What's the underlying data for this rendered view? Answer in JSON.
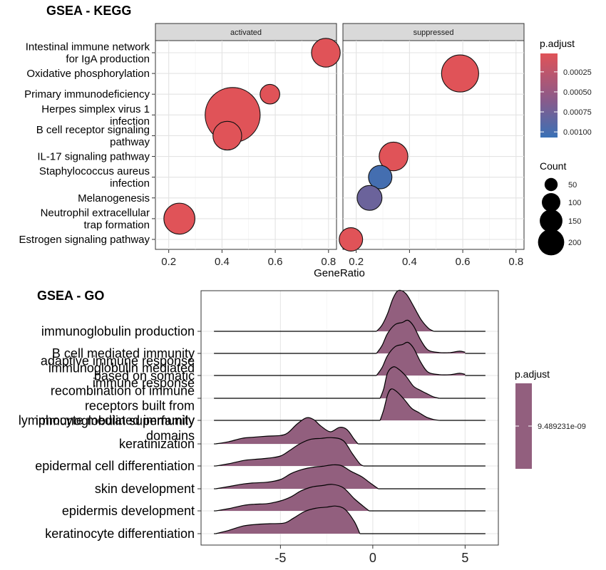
{
  "kegg": {
    "title": "GSEA - KEGG",
    "panels": [
      "activated",
      "suppressed"
    ],
    "xlabel": "GeneRatio",
    "size_legend_title": "Count",
    "color_legend_title": "p.adjust",
    "color_low": "#e05358",
    "color_high": "#3a71b6"
  },
  "go": {
    "title": "GSEA - GO",
    "color_legend_title": "p.adjust",
    "fill_color": "#925f7e"
  },
  "chart_data": [
    {
      "type": "scatter",
      "subtype": "faceted-dotplot",
      "title": "GSEA - KEGG",
      "xlabel": "GeneRatio",
      "ylabel": "",
      "xlim": [
        0.15,
        0.83
      ],
      "x_ticks": [
        "0.2",
        "0.4",
        "0.6",
        "0.8"
      ],
      "x_tick_values": [
        0.2,
        0.4,
        0.6,
        0.8
      ],
      "grid": true,
      "facets": [
        "activated",
        "suppressed"
      ],
      "categories": [
        "Intestinal immune network for IgA production",
        "Oxidative phosphorylation",
        "Primary immunodeficiency",
        "Herpes simplex virus 1 infection",
        "B cell receptor signaling pathway",
        "IL-17 signaling pathway",
        "Staphylococcus aureus infection",
        "Melanogenesis",
        "Neutrophil extracellular trap formation",
        "Estrogen signaling pathway"
      ],
      "category_label_lines": [
        [
          "Intestinal immune network",
          "for IgA production"
        ],
        [
          "Oxidative phosphorylation"
        ],
        [
          "Primary immunodeficiency"
        ],
        [
          "Herpes simplex virus 1",
          "infection"
        ],
        [
          "B cell receptor signaling",
          "pathway"
        ],
        [
          "IL-17 signaling pathway"
        ],
        [
          "Staphylococcus aureus",
          "infection"
        ],
        [
          "Melanogenesis"
        ],
        [
          "Neutrophil extracellular",
          "trap formation"
        ],
        [
          "Estrogen signaling pathway"
        ]
      ],
      "points": [
        {
          "category": "Intestinal immune network for IgA production",
          "facet": "activated",
          "x": 0.79,
          "count": 60,
          "p_adjust": 2e-05
        },
        {
          "category": "Oxidative phosphorylation",
          "facet": "suppressed",
          "x": 0.59,
          "count": 100,
          "p_adjust": 2e-05
        },
        {
          "category": "Primary immunodeficiency",
          "facet": "activated",
          "x": 0.58,
          "count": 28,
          "p_adjust": 2e-05
        },
        {
          "category": "Herpes simplex virus 1 infection",
          "facet": "activated",
          "x": 0.44,
          "count": 220,
          "p_adjust": 2e-05
        },
        {
          "category": "B cell receptor signaling pathway",
          "facet": "activated",
          "x": 0.42,
          "count": 60,
          "p_adjust": 2e-05
        },
        {
          "category": "IL-17 signaling pathway",
          "facet": "suppressed",
          "x": 0.34,
          "count": 60,
          "p_adjust": 2e-05
        },
        {
          "category": "Staphylococcus aureus infection",
          "facet": "suppressed",
          "x": 0.29,
          "count": 40,
          "p_adjust": 0.00101
        },
        {
          "category": "Melanogenesis",
          "facet": "suppressed",
          "x": 0.25,
          "count": 45,
          "p_adjust": 0.00078
        },
        {
          "category": "Neutrophil extracellular trap formation",
          "facet": "activated",
          "x": 0.24,
          "count": 70,
          "p_adjust": 2e-05
        },
        {
          "category": "Estrogen signaling pathway",
          "facet": "suppressed",
          "x": 0.18,
          "count": 40,
          "p_adjust": 2e-05
        }
      ],
      "color_legend": {
        "title": "p.adjust",
        "range": [
          2e-05,
          0.00107
        ],
        "breaks": [
          0.00025,
          0.0005,
          0.00075,
          0.001
        ],
        "labels": [
          "0.00025",
          "0.00050",
          "0.00075",
          "0.00100"
        ]
      },
      "size_legend": {
        "title": "Count",
        "breaks": [
          50,
          100,
          150,
          200
        ],
        "labels": [
          "50",
          "100",
          "150",
          "200"
        ]
      }
    },
    {
      "type": "area",
      "subtype": "ridgeline",
      "title": "GSEA - GO",
      "xlabel": "",
      "ylabel": "",
      "xlim": [
        -9.3,
        6.8
      ],
      "x_ticks": [
        "-5",
        "0",
        "5"
      ],
      "x_tick_values": [
        -5,
        0,
        5
      ],
      "grid": true,
      "color_legend": {
        "title": "p.adjust",
        "labels": [
          "9.489231e-09"
        ]
      },
      "ridges": [
        {
          "label": "immunoglobulin production",
          "label_lines": [
            "immunoglobulin production"
          ],
          "x_range": [
            -8.6,
            6.1
          ],
          "fill_range": [
            0.2,
            3.3
          ],
          "density_points": [
            [
              0.2,
              0
            ],
            [
              0.5,
              0.28
            ],
            [
              0.8,
              0.8
            ],
            [
              1.1,
              1.5
            ],
            [
              1.4,
              1.85
            ],
            [
              1.8,
              1.7
            ],
            [
              2.2,
              1.15
            ],
            [
              2.6,
              0.55
            ],
            [
              3.0,
              0.15
            ],
            [
              3.3,
              0
            ]
          ]
        },
        {
          "label": "B cell mediated immunity",
          "label_lines": [
            "B cell mediated immunity"
          ],
          "x_range": [
            -8.6,
            6.1
          ],
          "fill_range": [
            0.2,
            5.0
          ],
          "density_points": [
            [
              0.2,
              0
            ],
            [
              0.5,
              0.35
            ],
            [
              0.8,
              0.9
            ],
            [
              1.2,
              1.3
            ],
            [
              1.6,
              1.4
            ],
            [
              1.9,
              1.5
            ],
            [
              2.2,
              1.25
            ],
            [
              2.6,
              0.6
            ],
            [
              3.0,
              0.15
            ],
            [
              3.6,
              0.04
            ],
            [
              4.2,
              0.04
            ],
            [
              4.7,
              0.1
            ],
            [
              5.0,
              0.05
            ]
          ]
        },
        {
          "label": "immunoglobulin mediated immune response",
          "label_lines": [
            "immunoglobulin mediated",
            "immune response"
          ],
          "x_range": [
            -8.6,
            6.1
          ],
          "fill_range": [
            0.2,
            5.0
          ],
          "density_points": [
            [
              0.2,
              0
            ],
            [
              0.5,
              0.35
            ],
            [
              0.8,
              0.9
            ],
            [
              1.2,
              1.3
            ],
            [
              1.6,
              1.4
            ],
            [
              1.9,
              1.5
            ],
            [
              2.2,
              1.25
            ],
            [
              2.6,
              0.6
            ],
            [
              3.0,
              0.15
            ],
            [
              3.6,
              0.04
            ],
            [
              4.2,
              0.04
            ],
            [
              4.7,
              0.1
            ],
            [
              5.0,
              0.05
            ]
          ]
        },
        {
          "label": "adaptive immune response based on somatic recombination of immune receptors built from immunoglobulin superfamily domains",
          "label_lines": [
            "adaptive immune response",
            "based on somatic",
            "recombination of immune",
            "receptors built from",
            "immunoglobulin superfamily",
            "domains"
          ],
          "x_range": [
            -8.6,
            6.1
          ],
          "fill_range": [
            0.4,
            3.6
          ],
          "density_points": [
            [
              0.4,
              0
            ],
            [
              0.6,
              0.45
            ],
            [
              0.8,
              1.15
            ],
            [
              1.1,
              1.42
            ],
            [
              1.4,
              1.32
            ],
            [
              1.8,
              1.0
            ],
            [
              2.2,
              0.55
            ],
            [
              2.6,
              0.35
            ],
            [
              3.0,
              0.18
            ],
            [
              3.3,
              0.06
            ],
            [
              3.6,
              0
            ]
          ]
        },
        {
          "label": "lymphocyte mediated immunity",
          "label_lines": [
            "lymphocyte mediated immunity"
          ],
          "x_range": [
            -8.6,
            6.1
          ],
          "fill_range": [
            0.4,
            3.6
          ],
          "density_points": [
            [
              0.4,
              0
            ],
            [
              0.6,
              0.5
            ],
            [
              0.8,
              1.15
            ],
            [
              1.0,
              1.42
            ],
            [
              1.3,
              1.3
            ],
            [
              1.7,
              0.95
            ],
            [
              2.1,
              0.55
            ],
            [
              2.5,
              0.35
            ],
            [
              2.9,
              0.15
            ],
            [
              3.3,
              0.04
            ],
            [
              3.6,
              0
            ]
          ]
        },
        {
          "label": "keratinization",
          "label_lines": [
            "keratinization"
          ],
          "x_range": [
            -8.6,
            6.1
          ],
          "fill_range": [
            -8.5,
            -0.8
          ],
          "density_points": [
            [
              -8.5,
              0
            ],
            [
              -7.8,
              0.1
            ],
            [
              -7.1,
              0.25
            ],
            [
              -6.5,
              0.3
            ],
            [
              -5.7,
              0.35
            ],
            [
              -5.0,
              0.38
            ],
            [
              -4.6,
              0.5
            ],
            [
              -4.1,
              0.9
            ],
            [
              -3.6,
              1.18
            ],
            [
              -3.2,
              1.1
            ],
            [
              -2.8,
              0.8
            ],
            [
              -2.3,
              0.55
            ],
            [
              -1.8,
              0.75
            ],
            [
              -1.4,
              0.65
            ],
            [
              -1.0,
              0.2
            ],
            [
              -0.8,
              0
            ]
          ]
        },
        {
          "label": "epidermal cell differentiation",
          "label_lines": [
            "epidermal cell differentiation"
          ],
          "x_range": [
            -8.6,
            6.1
          ],
          "fill_range": [
            -8.5,
            -0.5
          ],
          "density_points": [
            [
              -8.5,
              0
            ],
            [
              -7.8,
              0.1
            ],
            [
              -7.0,
              0.25
            ],
            [
              -6.4,
              0.3
            ],
            [
              -5.7,
              0.35
            ],
            [
              -5.0,
              0.45
            ],
            [
              -4.5,
              0.7
            ],
            [
              -4.0,
              0.98
            ],
            [
              -3.4,
              1.2
            ],
            [
              -2.8,
              1.25
            ],
            [
              -2.2,
              1.28
            ],
            [
              -1.6,
              1.15
            ],
            [
              -1.1,
              0.55
            ],
            [
              -0.7,
              0.1
            ],
            [
              -0.5,
              0
            ]
          ]
        },
        {
          "label": "skin development",
          "label_lines": [
            "skin development"
          ],
          "x_range": [
            -8.6,
            6.1
          ],
          "fill_range": [
            -8.5,
            0.3
          ],
          "density_points": [
            [
              -8.5,
              0
            ],
            [
              -7.8,
              0.1
            ],
            [
              -7.0,
              0.22
            ],
            [
              -6.5,
              0.26
            ],
            [
              -5.7,
              0.3
            ],
            [
              -5.0,
              0.42
            ],
            [
              -4.4,
              0.7
            ],
            [
              -3.8,
              0.88
            ],
            [
              -3.2,
              0.98
            ],
            [
              -2.7,
              1.02
            ],
            [
              -2.2,
              1.08
            ],
            [
              -1.7,
              1.05
            ],
            [
              -1.2,
              0.8
            ],
            [
              -0.6,
              0.55
            ],
            [
              -0.2,
              0.3
            ],
            [
              0.3,
              0
            ]
          ]
        },
        {
          "label": "epidermis development",
          "label_lines": [
            "epidermis development"
          ],
          "x_range": [
            -8.6,
            6.1
          ],
          "fill_range": [
            -8.5,
            -0.2
          ],
          "density_points": [
            [
              -8.5,
              0
            ],
            [
              -7.8,
              0.1
            ],
            [
              -7.0,
              0.25
            ],
            [
              -6.4,
              0.3
            ],
            [
              -5.7,
              0.33
            ],
            [
              -5.0,
              0.45
            ],
            [
              -4.4,
              0.65
            ],
            [
              -3.9,
              0.9
            ],
            [
              -3.3,
              1.08
            ],
            [
              -2.7,
              1.15
            ],
            [
              -2.2,
              1.2
            ],
            [
              -1.6,
              1.05
            ],
            [
              -1.0,
              0.55
            ],
            [
              -0.5,
              0.2
            ],
            [
              -0.2,
              0
            ]
          ]
        },
        {
          "label": "keratinocyte differentiation",
          "label_lines": [
            "keratinocyte differentiation"
          ],
          "x_range": [
            -8.6,
            6.1
          ],
          "fill_range": [
            -8.5,
            -0.7
          ],
          "density_points": [
            [
              -8.5,
              0
            ],
            [
              -7.8,
              0.15
            ],
            [
              -7.0,
              0.35
            ],
            [
              -6.3,
              0.42
            ],
            [
              -5.6,
              0.45
            ],
            [
              -4.8,
              0.48
            ],
            [
              -4.3,
              0.7
            ],
            [
              -3.7,
              1.0
            ],
            [
              -3.1,
              1.15
            ],
            [
              -2.5,
              1.2
            ],
            [
              -2.0,
              1.25
            ],
            [
              -1.5,
              1.1
            ],
            [
              -1.0,
              0.55
            ],
            [
              -0.7,
              0
            ]
          ]
        }
      ]
    }
  ]
}
